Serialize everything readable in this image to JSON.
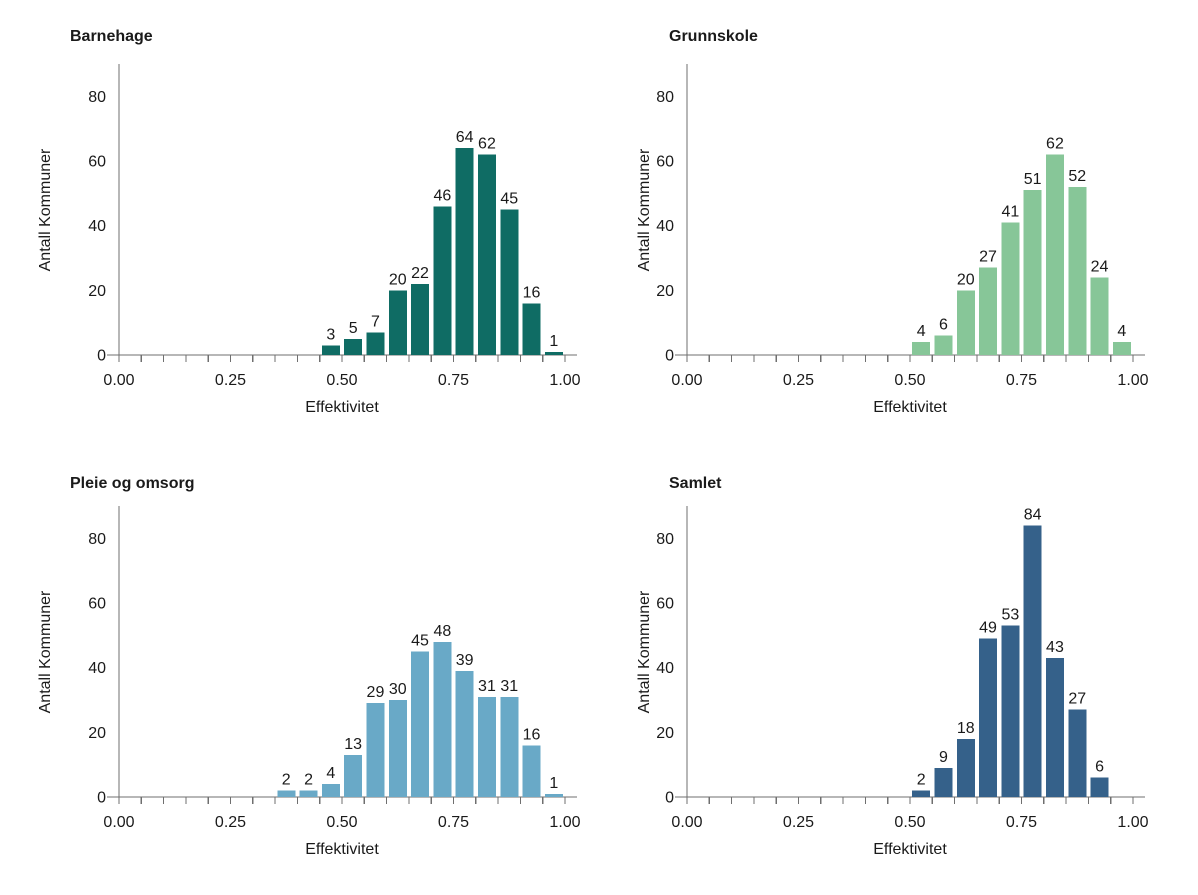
{
  "style": {
    "background": "#ffffff",
    "axis_color": "#6f6f6f",
    "text_color": "#1a1a1a"
  },
  "chart_data": [
    {
      "type": "bar",
      "title": "Barnehage",
      "xlabel": "Effektivitet",
      "ylabel": "Antall Kommuner",
      "bar_color": "#0f6c64",
      "bin_width": 0.05,
      "x": [
        0.475,
        0.525,
        0.575,
        0.625,
        0.675,
        0.725,
        0.775,
        0.825,
        0.875,
        0.925,
        0.975
      ],
      "values": [
        3,
        5,
        7,
        20,
        22,
        46,
        64,
        62,
        45,
        16,
        1
      ],
      "xlim": [
        0,
        1
      ],
      "ylim": [
        0,
        90
      ],
      "xticks": [
        0,
        0.25,
        0.5,
        0.75,
        1
      ],
      "xtick_labels": [
        "0.00",
        "0.25",
        "0.50",
        "0.75",
        "1.00"
      ],
      "xtick_minor_step": 0.05,
      "yticks": [
        0,
        20,
        40,
        60,
        80
      ],
      "grid": "off",
      "legend": "none"
    },
    {
      "type": "bar",
      "title": "Grunnskole",
      "xlabel": "Effektivitet",
      "ylabel": "Antall Kommuner",
      "bar_color": "#87c698",
      "bin_width": 0.05,
      "x": [
        0.525,
        0.575,
        0.625,
        0.675,
        0.725,
        0.775,
        0.825,
        0.875,
        0.925,
        0.975
      ],
      "values": [
        4,
        6,
        20,
        27,
        41,
        51,
        62,
        52,
        24,
        4
      ],
      "xlim": [
        0,
        1
      ],
      "ylim": [
        0,
        90
      ],
      "xticks": [
        0,
        0.25,
        0.5,
        0.75,
        1
      ],
      "xtick_labels": [
        "0.00",
        "0.25",
        "0.50",
        "0.75",
        "1.00"
      ],
      "xtick_minor_step": 0.05,
      "yticks": [
        0,
        20,
        40,
        60,
        80
      ],
      "grid": "off",
      "legend": "none"
    },
    {
      "type": "bar",
      "title": "Pleie og omsorg",
      "xlabel": "Effektivitet",
      "ylabel": "Antall Kommuner",
      "bar_color": "#69a9c7",
      "bin_width": 0.05,
      "x": [
        0.375,
        0.425,
        0.475,
        0.525,
        0.575,
        0.625,
        0.675,
        0.725,
        0.775,
        0.825,
        0.875,
        0.925,
        0.975
      ],
      "values": [
        2,
        2,
        4,
        13,
        29,
        30,
        45,
        48,
        39,
        31,
        31,
        16,
        1
      ],
      "xlim": [
        0,
        1
      ],
      "ylim": [
        0,
        90
      ],
      "xticks": [
        0,
        0.25,
        0.5,
        0.75,
        1
      ],
      "xtick_labels": [
        "0.00",
        "0.25",
        "0.50",
        "0.75",
        "1.00"
      ],
      "xtick_minor_step": 0.05,
      "yticks": [
        0,
        20,
        40,
        60,
        80
      ],
      "grid": "off",
      "legend": "none"
    },
    {
      "type": "bar",
      "title": "Samlet",
      "xlabel": "Effektivitet",
      "ylabel": "Antall Kommuner",
      "bar_color": "#35618a",
      "bin_width": 0.05,
      "x": [
        0.525,
        0.575,
        0.625,
        0.675,
        0.725,
        0.775,
        0.825,
        0.875,
        0.925
      ],
      "values": [
        2,
        9,
        18,
        49,
        53,
        84,
        43,
        27,
        6
      ],
      "xlim": [
        0,
        1
      ],
      "ylim": [
        0,
        90
      ],
      "xticks": [
        0,
        0.25,
        0.5,
        0.75,
        1
      ],
      "xtick_labels": [
        "0.00",
        "0.25",
        "0.50",
        "0.75",
        "1.00"
      ],
      "xtick_minor_step": 0.05,
      "yticks": [
        0,
        20,
        40,
        60,
        80
      ],
      "grid": "off",
      "legend": "none"
    }
  ]
}
